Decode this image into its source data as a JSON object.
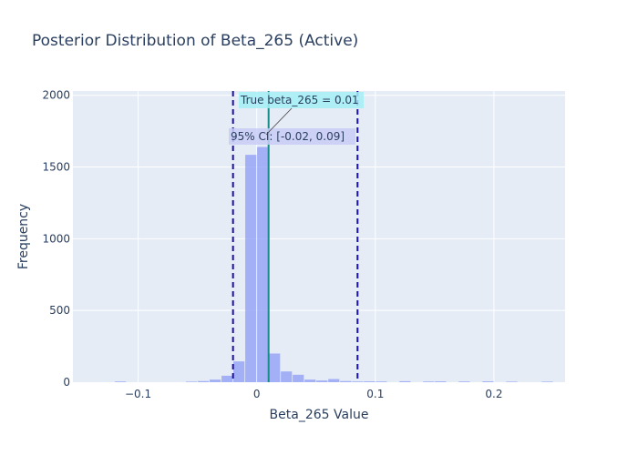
{
  "chart_data": {
    "type": "bar",
    "title": "Posterior Distribution of Beta_265 (Active)",
    "xlabel": "Beta_265 Value",
    "ylabel": "Frequency",
    "xlim": [
      -0.155,
      0.26
    ],
    "ylim": [
      0,
      2030
    ],
    "bin_width": 0.01,
    "x_ticks": [
      -0.1,
      0,
      0.1,
      0.2
    ],
    "x_tick_labels": [
      "−0.1",
      "0",
      "0.1",
      "0.2"
    ],
    "y_ticks": [
      0,
      500,
      1000,
      1500,
      2000
    ],
    "y_tick_labels": [
      "0",
      "500",
      "1000",
      "1500",
      "2000"
    ],
    "grid": true,
    "bar_color": "#8c9cf5",
    "bins": [
      {
        "x": -0.115,
        "y": 5
      },
      {
        "x": -0.055,
        "y": 4
      },
      {
        "x": -0.045,
        "y": 8
      },
      {
        "x": -0.035,
        "y": 18
      },
      {
        "x": -0.025,
        "y": 45
      },
      {
        "x": -0.015,
        "y": 145
      },
      {
        "x": -0.005,
        "y": 1585
      },
      {
        "x": 0.005,
        "y": 1640
      },
      {
        "x": 0.015,
        "y": 200
      },
      {
        "x": 0.025,
        "y": 75
      },
      {
        "x": 0.035,
        "y": 52
      },
      {
        "x": 0.045,
        "y": 18
      },
      {
        "x": 0.055,
        "y": 12
      },
      {
        "x": 0.065,
        "y": 22
      },
      {
        "x": 0.075,
        "y": 8
      },
      {
        "x": 0.085,
        "y": 5
      },
      {
        "x": 0.095,
        "y": 6
      },
      {
        "x": 0.105,
        "y": 5
      },
      {
        "x": 0.125,
        "y": 7
      },
      {
        "x": 0.145,
        "y": 5
      },
      {
        "x": 0.155,
        "y": 6
      },
      {
        "x": 0.175,
        "y": 5
      },
      {
        "x": 0.195,
        "y": 6
      },
      {
        "x": 0.215,
        "y": 4
      },
      {
        "x": 0.245,
        "y": 4
      }
    ],
    "ci_lines": {
      "low": -0.02,
      "high": 0.085,
      "color": "#1a0fa8"
    },
    "true_line": {
      "value": 0.01,
      "color": "#178a8a"
    },
    "annotations": {
      "true_value": "True beta_265 = 0.01",
      "ci": "95% CI: [-0.02, 0.09]"
    }
  }
}
